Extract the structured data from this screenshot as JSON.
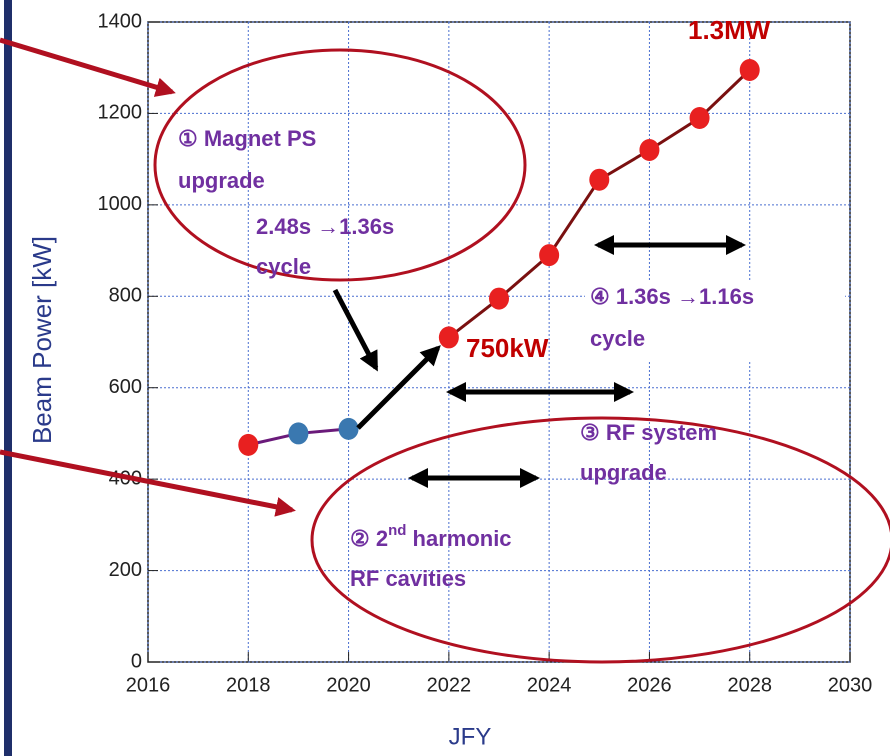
{
  "chart_data": {
    "type": "line",
    "x_label": "JFY",
    "y_label": "Beam Power [kW]",
    "xlim": [
      2016,
      2030
    ],
    "xticks": [
      2016,
      2018,
      2020,
      2022,
      2024,
      2026,
      2028,
      2030
    ],
    "ylim": [
      0,
      1400
    ],
    "yticks": [
      0,
      200,
      400,
      600,
      800,
      1000,
      1200,
      1400
    ],
    "grid": true,
    "grid_color": "#4a6fd0",
    "series": [
      {
        "color": "#7a1010",
        "marker_color": "#e82020",
        "x": [
          2022,
          2023,
          2024,
          2025,
          2026,
          2027,
          2028
        ],
        "values": [
          710,
          795,
          890,
          1055,
          1120,
          1190,
          1295
        ]
      },
      {
        "color": "#6a1a7a",
        "marker_colors": [
          "#e82020",
          "#3a78b0",
          "#3a78b0"
        ],
        "x": [
          2018,
          2019,
          2020
        ],
        "values": [
          475,
          500,
          510
        ]
      }
    ],
    "annotations": {
      "peak": "1.3MW",
      "mid": "750kW",
      "magnet_1": "① Magnet PS",
      "magnet_2": "upgrade",
      "cycle_a_1": "2.48s →1.36s",
      "cycle_a_2": "cycle",
      "cycle_b_1": "④ 1.36s →1.16s",
      "cycle_b_2": "cycle",
      "rf_1": "③ RF system",
      "rf_2": "upgrade",
      "harm_1": "② 2",
      "harm_sup": "nd",
      "harm_2": " harmonic",
      "harm_3": "RF cavities"
    }
  }
}
